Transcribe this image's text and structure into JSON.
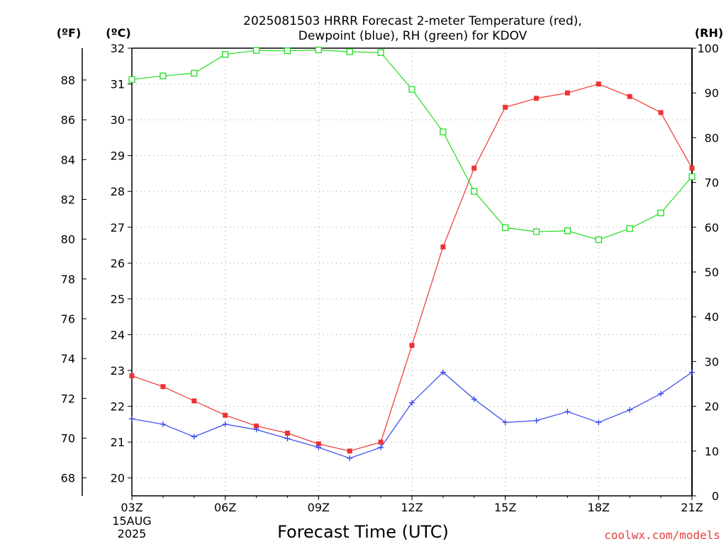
{
  "title_line1": "2025081503 HRRR Forecast 2-meter Temperature (red),",
  "title_line2": "Dewpoint (blue), RH (green) for KDOV",
  "credit": "coolwx.com/models",
  "chart_data": {
    "type": "line",
    "title": "2025081503 HRRR Forecast 2-meter Temperature (red), Dewpoint (blue), RH (green) for KDOV",
    "xlabel": "Forecast Time (UTC)",
    "x_tick_labels": [
      "03Z",
      "06Z",
      "09Z",
      "12Z",
      "15Z",
      "18Z",
      "21Z"
    ],
    "x_first_tick_sub": [
      "15AUG",
      "2025"
    ],
    "hours": [
      3,
      4,
      5,
      6,
      7,
      8,
      9,
      10,
      11,
      12,
      13,
      14,
      15,
      16,
      17,
      18,
      19,
      20,
      21
    ],
    "axes": {
      "left_f": {
        "unit_label": "(ºF)",
        "ticks": [
          68,
          70,
          72,
          74,
          76,
          78,
          80,
          82,
          84,
          86,
          88
        ]
      },
      "left_c": {
        "unit_label": "(ºC)",
        "ylim": [
          19.5,
          32
        ],
        "ticks": [
          20,
          21,
          22,
          23,
          24,
          25,
          26,
          27,
          28,
          29,
          30,
          31,
          32
        ]
      },
      "right_rh": {
        "unit_label": "(RH)",
        "ylim": [
          0,
          100
        ],
        "ticks": [
          0,
          10,
          20,
          30,
          40,
          50,
          60,
          70,
          80,
          90,
          100
        ]
      }
    },
    "grid": true,
    "series": [
      {
        "name": "Temperature",
        "color": "#ee3333",
        "axis": "c",
        "marker": "filled-square",
        "values": [
          22.85,
          22.55,
          22.15,
          21.75,
          21.45,
          21.25,
          20.95,
          20.75,
          21.0,
          23.7,
          26.45,
          28.65,
          30.35,
          30.6,
          30.75,
          31.0,
          30.65,
          30.2,
          28.65
        ]
      },
      {
        "name": "Dewpoint",
        "color": "#3344ee",
        "axis": "c",
        "marker": "plus",
        "values": [
          21.65,
          21.5,
          21.15,
          21.5,
          21.35,
          21.1,
          20.85,
          20.55,
          20.85,
          22.1,
          22.95,
          22.2,
          21.55,
          21.6,
          21.85,
          21.55,
          21.9,
          22.35,
          22.95
        ]
      },
      {
        "name": "RH",
        "color": "#22dd22",
        "axis": "rh",
        "marker": "open-square",
        "values": [
          93.0,
          93.8,
          94.4,
          98.6,
          99.5,
          99.4,
          99.6,
          99.2,
          99.0,
          90.8,
          81.3,
          68.0,
          59.9,
          59.0,
          59.2,
          57.2,
          59.7,
          63.2,
          71.3
        ]
      }
    ]
  }
}
